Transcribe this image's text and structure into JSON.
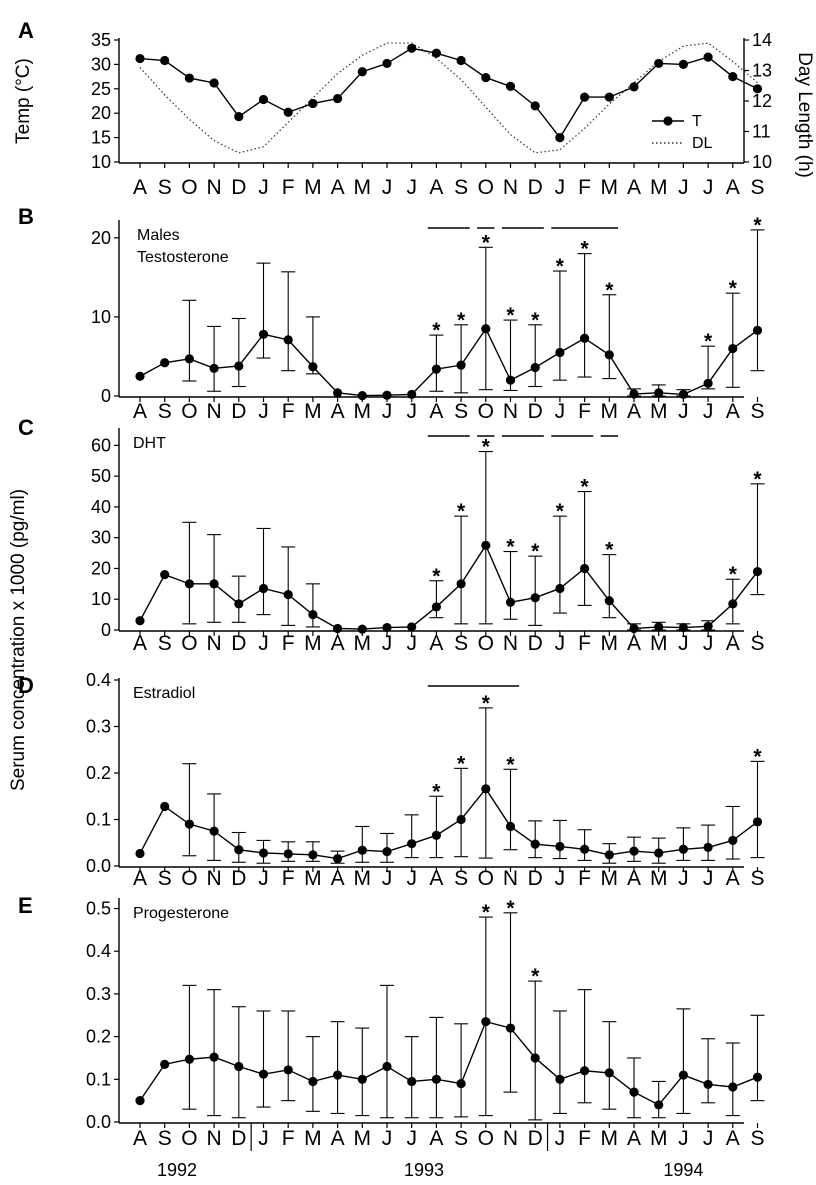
{
  "chart_data": [
    {
      "type": "line",
      "panel": "A",
      "x_ticks": [
        "A",
        "S",
        "O",
        "N",
        "D",
        "J",
        "F",
        "M",
        "A",
        "M",
        "J",
        "J",
        "A",
        "S",
        "O",
        "N",
        "D",
        "J",
        "F",
        "M",
        "A",
        "M",
        "J",
        "J",
        "A",
        "S"
      ],
      "ylabel": "Temp (°C)",
      "y2label": "Day Length (h)",
      "ylim": [
        10,
        35
      ],
      "y_ticks": [
        10,
        15,
        20,
        25,
        30,
        35
      ],
      "y2lim": [
        10,
        14
      ],
      "y2_ticks": [
        10,
        11,
        12,
        13,
        14
      ],
      "legend": [
        "T",
        "DL"
      ],
      "legend_position": "right",
      "series": [
        {
          "name": "T",
          "style": "solid line with filled circles",
          "values": [
            31.2,
            30.8,
            27.2,
            26.2,
            19.3,
            22.8,
            20.2,
            22.0,
            23.0,
            28.5,
            30.2,
            33.3,
            32.3,
            30.8,
            27.3,
            25.5,
            21.5,
            15.0,
            23.3,
            23.3,
            25.4,
            30.2,
            30.0,
            31.5,
            27.5,
            25.0
          ]
        },
        {
          "name": "DL",
          "style": "dotted line",
          "axis": "right",
          "values": [
            13.1,
            12.2,
            11.4,
            10.7,
            10.3,
            10.5,
            11.3,
            12.1,
            12.9,
            13.5,
            13.9,
            13.9,
            13.4,
            12.7,
            11.8,
            10.9,
            10.3,
            10.4,
            11.1,
            11.9,
            12.6,
            13.3,
            13.8,
            13.9,
            13.3,
            12.6
          ]
        }
      ]
    },
    {
      "type": "line",
      "panel": "B",
      "x_ticks": [
        "A",
        "S",
        "O",
        "N",
        "D",
        "J",
        "F",
        "M",
        "A",
        "M",
        "J",
        "J",
        "A",
        "S",
        "O",
        "N",
        "D",
        "J",
        "F",
        "M",
        "A",
        "M",
        "J",
        "J",
        "A",
        "S"
      ],
      "annotations": [
        "Males",
        "Testosterone"
      ],
      "ylim": [
        0,
        22
      ],
      "y_ticks": [
        0,
        10,
        20
      ],
      "values": [
        2.5,
        4.2,
        4.7,
        3.5,
        3.8,
        7.8,
        7.1,
        3.7,
        0.4,
        0.05,
        0.1,
        0.2,
        3.4,
        3.9,
        8.5,
        2.0,
        3.6,
        5.5,
        7.3,
        5.2,
        0.25,
        0.4,
        0.2,
        1.6,
        6.0,
        8.3
      ],
      "error_upper": [
        null,
        null,
        12.1,
        8.8,
        9.8,
        16.8,
        15.7,
        10.0,
        null,
        null,
        null,
        null,
        7.7,
        9.0,
        18.8,
        9.6,
        9.0,
        15.8,
        18.0,
        12.8,
        0.9,
        1.4,
        0.8,
        6.3,
        13.0,
        21.0
      ],
      "error_lower": [
        null,
        null,
        1.9,
        0.6,
        1.2,
        4.8,
        3.2,
        2.8,
        null,
        null,
        null,
        null,
        0.6,
        0.4,
        0.8,
        0.7,
        1.2,
        2.0,
        2.4,
        2.2,
        0.0,
        0.0,
        0.0,
        0.9,
        1.1,
        3.2
      ],
      "significant": [
        false,
        false,
        false,
        false,
        false,
        false,
        false,
        false,
        false,
        false,
        false,
        false,
        true,
        true,
        true,
        true,
        true,
        true,
        true,
        true,
        false,
        false,
        false,
        true,
        true,
        true
      ],
      "bars": [
        [
          12,
          13
        ],
        [
          14,
          14
        ],
        [
          15,
          16
        ],
        [
          17,
          19
        ]
      ]
    },
    {
      "type": "line",
      "panel": "C",
      "x_ticks": [
        "A",
        "S",
        "O",
        "N",
        "D",
        "J",
        "F",
        "M",
        "A",
        "M",
        "J",
        "J",
        "A",
        "S",
        "O",
        "N",
        "D",
        "J",
        "F",
        "M",
        "A",
        "M",
        "J",
        "J",
        "A",
        "S"
      ],
      "annotations": [
        "DHT"
      ],
      "ylim": [
        0,
        65
      ],
      "y_ticks": [
        0,
        10,
        20,
        30,
        40,
        50,
        60
      ],
      "values": [
        3,
        18,
        15,
        15,
        8.5,
        13.5,
        11.5,
        5,
        0.5,
        0.3,
        0.8,
        1,
        7.5,
        15,
        27.5,
        9,
        10.5,
        13.5,
        20,
        9.5,
        0.5,
        1,
        0.8,
        1.2,
        8.5,
        19
      ],
      "error_upper": [
        null,
        null,
        35,
        31,
        17.5,
        33,
        27,
        15,
        null,
        null,
        null,
        null,
        16,
        37,
        58,
        25.5,
        24,
        37,
        45,
        24.5,
        2,
        2.5,
        2,
        3,
        16.5,
        47.5
      ],
      "error_lower": [
        null,
        null,
        2,
        2.5,
        2.5,
        5,
        1.5,
        1,
        null,
        null,
        null,
        null,
        4,
        2,
        2,
        3.5,
        1.5,
        5.5,
        8,
        4,
        0,
        0,
        0,
        0,
        2,
        11.5
      ],
      "significant": [
        false,
        false,
        false,
        false,
        false,
        false,
        false,
        false,
        false,
        false,
        false,
        false,
        true,
        true,
        true,
        true,
        true,
        true,
        true,
        true,
        false,
        false,
        false,
        false,
        true,
        true
      ],
      "bars": [
        [
          12,
          13
        ],
        [
          14,
          14
        ],
        [
          15,
          16
        ],
        [
          17,
          18
        ],
        [
          19,
          19
        ]
      ]
    },
    {
      "type": "line",
      "panel": "D",
      "x_ticks": [
        "A",
        "S",
        "O",
        "N",
        "D",
        "J",
        "F",
        "M",
        "A",
        "M",
        "J",
        "J",
        "A",
        "S",
        "O",
        "N",
        "D",
        "J",
        "F",
        "M",
        "A",
        "M",
        "J",
        "J",
        "A",
        "S"
      ],
      "annotations": [
        "Estradiol"
      ],
      "ylim": [
        0,
        0.4
      ],
      "y_ticks": [
        "0.0",
        "0.1",
        "0.2",
        "0.3",
        "0.4"
      ],
      "values": [
        0.027,
        0.128,
        0.09,
        0.075,
        0.035,
        0.028,
        0.026,
        0.024,
        0.016,
        0.034,
        0.031,
        0.048,
        0.066,
        0.1,
        0.166,
        0.085,
        0.047,
        0.042,
        0.036,
        0.024,
        0.032,
        0.028,
        0.036,
        0.04,
        0.055,
        0.095
      ],
      "error_upper": [
        null,
        null,
        0.22,
        0.155,
        0.072,
        0.055,
        0.052,
        0.052,
        0.032,
        0.085,
        0.07,
        0.11,
        0.15,
        0.21,
        0.34,
        0.208,
        0.097,
        0.098,
        0.078,
        0.048,
        0.062,
        0.06,
        0.082,
        0.088,
        0.128,
        0.225
      ],
      "error_lower": [
        null,
        null,
        0.022,
        0.012,
        0.008,
        0.006,
        0.01,
        0.01,
        0.006,
        0.008,
        0.008,
        0.018,
        0.018,
        0.02,
        0.017,
        0.035,
        0.018,
        0.016,
        0.012,
        0.006,
        0.01,
        0.006,
        0.012,
        0.012,
        0.015,
        0.018
      ],
      "significant": [
        false,
        false,
        false,
        false,
        false,
        false,
        false,
        false,
        false,
        false,
        false,
        false,
        true,
        true,
        true,
        true,
        false,
        false,
        false,
        false,
        false,
        false,
        false,
        false,
        false,
        true
      ],
      "bars": [
        [
          12,
          15
        ]
      ]
    },
    {
      "type": "line",
      "panel": "E",
      "x_ticks": [
        "A",
        "S",
        "O",
        "N",
        "D",
        "J",
        "F",
        "M",
        "A",
        "M",
        "J",
        "J",
        "A",
        "S",
        "O",
        "N",
        "D",
        "J",
        "F",
        "M",
        "A",
        "M",
        "J",
        "J",
        "A",
        "S"
      ],
      "annotations": [
        "Progesterone"
      ],
      "ylim": [
        0,
        0.52
      ],
      "y_ticks": [
        "0.0",
        "0.1",
        "0.2",
        "0.3",
        "0.4",
        "0.5"
      ],
      "ylabel": "Serum concentration x 1000 (pg/ml)",
      "year_labels": [
        "1992",
        "1993",
        "1994"
      ],
      "values": [
        0.05,
        0.135,
        0.147,
        0.152,
        0.13,
        0.112,
        0.122,
        0.095,
        0.11,
        0.1,
        0.13,
        0.095,
        0.1,
        0.09,
        0.235,
        0.22,
        0.15,
        0.1,
        0.12,
        0.115,
        0.07,
        0.04,
        0.11,
        0.088,
        0.082,
        0.105
      ],
      "error_upper": [
        null,
        null,
        0.32,
        0.31,
        0.27,
        0.26,
        0.26,
        0.2,
        0.235,
        0.22,
        0.32,
        0.2,
        0.245,
        0.23,
        0.48,
        0.49,
        0.33,
        0.26,
        0.31,
        0.235,
        0.15,
        0.095,
        0.265,
        0.195,
        0.185,
        0.25
      ],
      "error_lower": [
        null,
        null,
        0.03,
        0.015,
        0.01,
        0.035,
        0.05,
        0.025,
        0.02,
        0.015,
        0.01,
        0.01,
        0.01,
        0.012,
        0.015,
        0.07,
        0.005,
        0.02,
        0.045,
        0.03,
        0.01,
        0.01,
        0.02,
        0.045,
        0.015,
        0.05
      ],
      "significant": [
        false,
        false,
        false,
        false,
        false,
        false,
        false,
        false,
        false,
        false,
        false,
        false,
        false,
        false,
        true,
        true,
        true,
        false,
        false,
        false,
        false,
        false,
        false,
        false,
        false,
        false
      ],
      "bars": []
    }
  ]
}
